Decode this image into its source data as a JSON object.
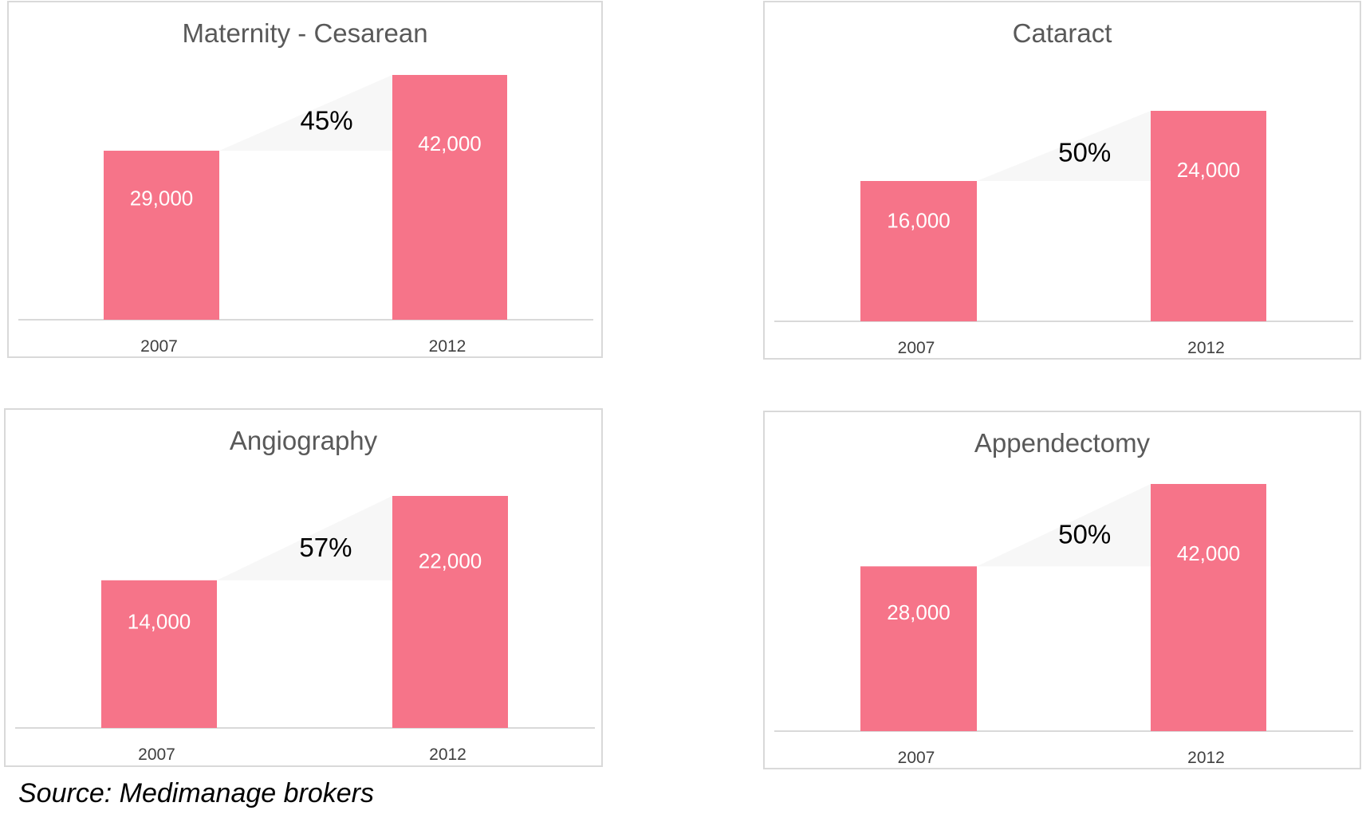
{
  "source": "Source: Medimanage brokers",
  "colors": {
    "bar": "#f67489",
    "growth_wedge": "#f7f7f7",
    "axis": "#d9d9d9"
  },
  "chart_data": [
    {
      "type": "bar",
      "title": "Maternity - Cesarean",
      "categories": [
        "2007",
        "2012"
      ],
      "values": [
        29000,
        42000
      ],
      "value_labels": [
        "29,000",
        "42,000"
      ],
      "growth_label": "45%",
      "ylim": [
        0,
        42000
      ],
      "grid": false,
      "legend": "none"
    },
    {
      "type": "bar",
      "title": "Cataract",
      "categories": [
        "2007",
        "2012"
      ],
      "values": [
        16000,
        24000
      ],
      "value_labels": [
        "16,000",
        "24,000"
      ],
      "growth_label": "50%",
      "ylim": [
        0,
        24000
      ],
      "grid": false,
      "legend": "none"
    },
    {
      "type": "bar",
      "title": "Angiography",
      "categories": [
        "2007",
        "2012"
      ],
      "values": [
        14000,
        22000
      ],
      "value_labels": [
        "14,000",
        "22,000"
      ],
      "growth_label": "57%",
      "ylim": [
        0,
        22000
      ],
      "grid": false,
      "legend": "none"
    },
    {
      "type": "bar",
      "title": "Appendectomy",
      "categories": [
        "2007",
        "2012"
      ],
      "values": [
        28000,
        42000
      ],
      "value_labels": [
        "28,000",
        "42,000"
      ],
      "growth_label": "50%",
      "ylim": [
        0,
        42000
      ],
      "grid": false,
      "legend": "none"
    }
  ]
}
